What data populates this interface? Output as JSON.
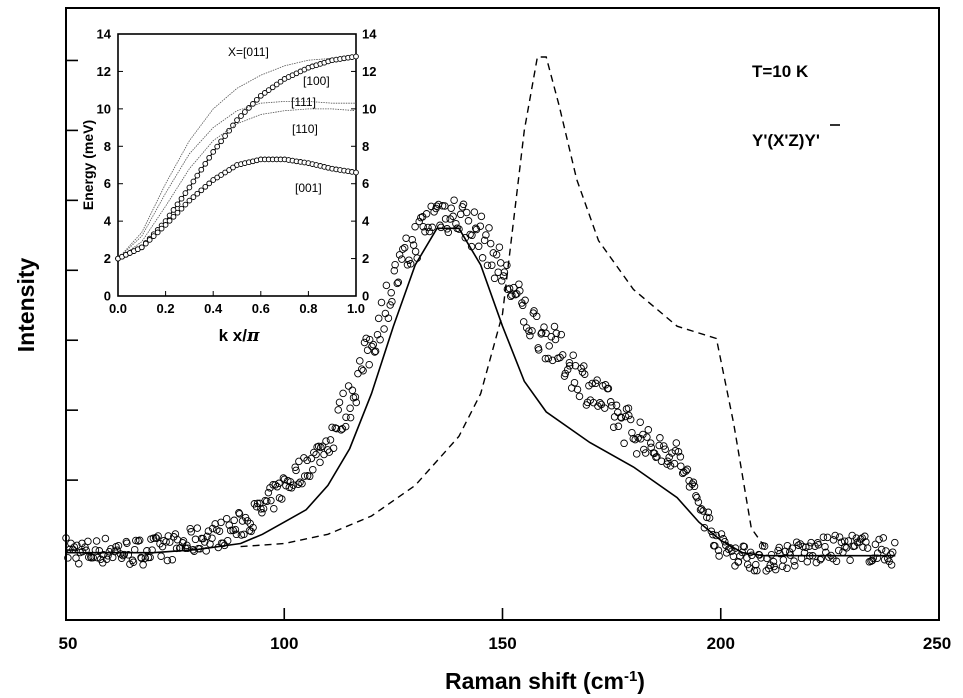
{
  "chart_data": [
    {
      "type": "scatter",
      "xlabel": "Raman shift (cm",
      "xlabel_sup": "-1",
      "xlabel_close": ")",
      "ylabel": "Intensity",
      "xlim": [
        50,
        250
      ],
      "ylim": [
        0,
        100
      ],
      "xticks": [
        50,
        100,
        150,
        200,
        250
      ],
      "yticks_count": 8,
      "annotations": {
        "temperature": "T=10 K",
        "geometry_prefix": "Y'(X'Z)",
        "geometry_suffix": "Y'"
      },
      "series": [
        {
          "style": "open-circles",
          "segments": [
            [
              50,
              11.5
            ],
            [
              55,
              11
            ],
            [
              60,
              11.5
            ],
            [
              65,
              11
            ],
            [
              70,
              11.5
            ],
            [
              75,
              12
            ],
            [
              80,
              13
            ],
            [
              85,
              14
            ],
            [
              90,
              15.5
            ],
            [
              95,
              18
            ],
            [
              100,
              22
            ],
            [
              105,
              25
            ],
            [
              110,
              29
            ],
            [
              115,
              36
            ],
            [
              120,
              45
            ],
            [
              125,
              55
            ],
            [
              130,
              62
            ],
            [
              135,
              67
            ],
            [
              140,
              66
            ],
            [
              145,
              63
            ],
            [
              150,
              57
            ],
            [
              155,
              50
            ],
            [
              160,
              46
            ],
            [
              165,
              42
            ],
            [
              170,
              38
            ],
            [
              175,
              34
            ],
            [
              180,
              31
            ],
            [
              185,
              28
            ],
            [
              190,
              27
            ],
            [
              195,
              19
            ],
            [
              200,
              12
            ],
            [
              205,
              10.5
            ],
            [
              210,
              10
            ],
            [
              215,
              10.5
            ],
            [
              220,
              11
            ],
            [
              225,
              11.5
            ],
            [
              230,
              12
            ],
            [
              235,
              11.5
            ],
            [
              240,
              11
            ]
          ]
        },
        {
          "style": "solid",
          "points": [
            [
              50,
              11
            ],
            [
              60,
              11
            ],
            [
              70,
              11
            ],
            [
              80,
              11.5
            ],
            [
              90,
              12.5
            ],
            [
              95,
              14
            ],
            [
              100,
              16
            ],
            [
              105,
              18
            ],
            [
              110,
              22
            ],
            [
              115,
              28
            ],
            [
              120,
              37
            ],
            [
              125,
              48
            ],
            [
              130,
              58
            ],
            [
              135,
              64
            ],
            [
              140,
              64
            ],
            [
              145,
              58
            ],
            [
              150,
              48
            ],
            [
              155,
              39
            ],
            [
              160,
              34
            ],
            [
              170,
              29
            ],
            [
              180,
              25
            ],
            [
              190,
              20
            ],
            [
              195,
              16
            ],
            [
              200,
              13
            ],
            [
              205,
              11
            ],
            [
              210,
              10.5
            ],
            [
              220,
              10.5
            ],
            [
              230,
              10.5
            ],
            [
              240,
              10.5
            ]
          ]
        },
        {
          "style": "dashed",
          "points": [
            [
              90,
              12
            ],
            [
              100,
              12.5
            ],
            [
              110,
              14
            ],
            [
              120,
              17
            ],
            [
              130,
              22
            ],
            [
              140,
              30
            ],
            [
              145,
              37
            ],
            [
              150,
              50
            ],
            [
              155,
              80
            ],
            [
              158,
              92
            ],
            [
              160,
              92
            ],
            [
              163,
              84
            ],
            [
              167,
              72
            ],
            [
              172,
              62
            ],
            [
              180,
              54
            ],
            [
              190,
              48
            ],
            [
              199,
              46
            ],
            [
              203,
              32
            ],
            [
              207,
              15
            ],
            [
              210,
              12
            ]
          ]
        }
      ]
    },
    {
      "type": "line",
      "xlabel": "k x/",
      "xlabel_symbol": "π",
      "ylabel": "Energy (meV)",
      "xlim": [
        0,
        1
      ],
      "ylim": [
        0,
        14
      ],
      "xticks": [
        0.0,
        0.2,
        0.4,
        0.6,
        0.8,
        1.0
      ],
      "xtick_labels": [
        "0.0",
        "0.2",
        "0.4",
        "0.6",
        "0.8",
        "1.0"
      ],
      "yticks": [
        0,
        2,
        4,
        6,
        8,
        10,
        12,
        14
      ],
      "series": [
        {
          "name": "X=[011]",
          "style": "thin",
          "points": [
            [
              0,
              2
            ],
            [
              0.1,
              3.4
            ],
            [
              0.2,
              6.0
            ],
            [
              0.3,
              8.3
            ],
            [
              0.4,
              10.0
            ],
            [
              0.5,
              11.1
            ],
            [
              0.6,
              11.8
            ],
            [
              0.7,
              12.3
            ],
            [
              0.8,
              12.6
            ],
            [
              0.9,
              12.7
            ],
            [
              1.0,
              12.7
            ]
          ]
        },
        {
          "name": "[100]",
          "style": "circles",
          "points": [
            [
              0,
              2
            ],
            [
              0.1,
              2.6
            ],
            [
              0.2,
              4.0
            ],
            [
              0.3,
              5.8
            ],
            [
              0.4,
              7.7
            ],
            [
              0.5,
              9.4
            ],
            [
              0.6,
              10.7
            ],
            [
              0.7,
              11.6
            ],
            [
              0.8,
              12.2
            ],
            [
              0.9,
              12.6
            ],
            [
              1.0,
              12.8
            ]
          ]
        },
        {
          "name": "[111]",
          "style": "thin",
          "points": [
            [
              0,
              2
            ],
            [
              0.1,
              3.2
            ],
            [
              0.2,
              5.5
            ],
            [
              0.3,
              7.6
            ],
            [
              0.4,
              9.0
            ],
            [
              0.5,
              9.9
            ],
            [
              0.6,
              10.3
            ],
            [
              0.7,
              10.4
            ],
            [
              0.8,
              10.4
            ],
            [
              0.9,
              10.3
            ],
            [
              1.0,
              10.3
            ]
          ]
        },
        {
          "name": "[110]",
          "style": "thin",
          "points": [
            [
              0,
              2
            ],
            [
              0.1,
              2.9
            ],
            [
              0.2,
              4.8
            ],
            [
              0.3,
              6.8
            ],
            [
              0.4,
              8.3
            ],
            [
              0.5,
              9.2
            ],
            [
              0.6,
              9.7
            ],
            [
              0.7,
              9.9
            ],
            [
              0.8,
              10.0
            ],
            [
              0.9,
              10.0
            ],
            [
              1.0,
              9.9
            ]
          ]
        },
        {
          "name": "[001]",
          "style": "circles",
          "points": [
            [
              0,
              2
            ],
            [
              0.1,
              2.6
            ],
            [
              0.2,
              3.8
            ],
            [
              0.3,
              5.1
            ],
            [
              0.4,
              6.2
            ],
            [
              0.5,
              7.0
            ],
            [
              0.6,
              7.3
            ],
            [
              0.7,
              7.3
            ],
            [
              0.8,
              7.1
            ],
            [
              0.9,
              6.8
            ],
            [
              1.0,
              6.6
            ]
          ]
        }
      ]
    }
  ]
}
